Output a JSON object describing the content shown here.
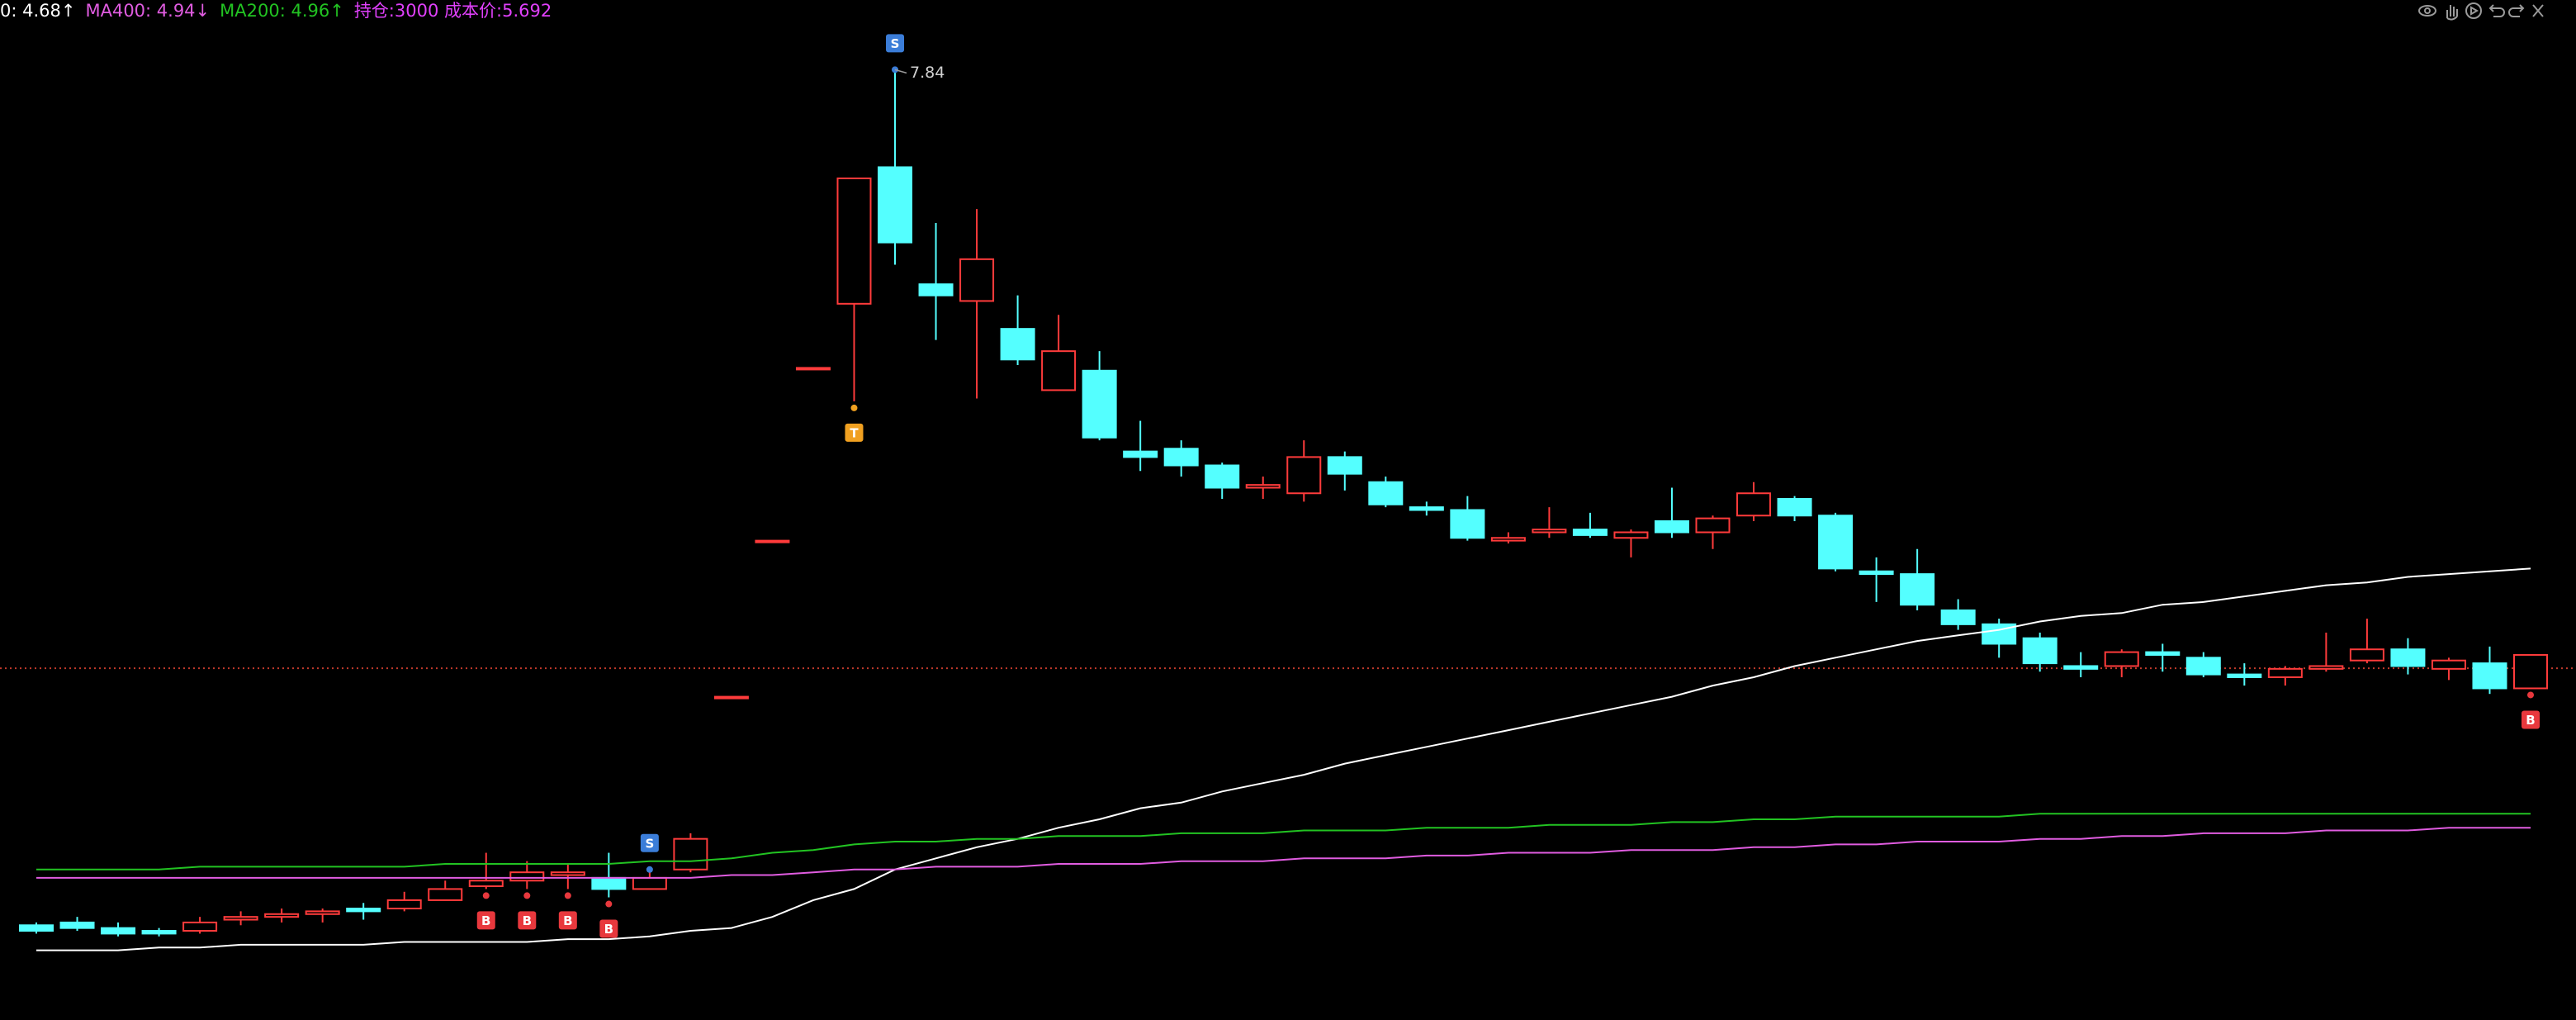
{
  "chart_data": {
    "type": "candlestick",
    "ylim": [
      4.43,
      8.09
    ],
    "open": [
      4.77,
      4.78,
      4.76,
      4.75,
      4.75,
      4.79,
      4.8,
      4.81,
      4.83,
      4.83,
      4.86,
      4.91,
      4.93,
      4.95,
      4.94,
      4.9,
      4.97,
      5.59,
      6.15,
      6.77,
      7.0,
      7.49,
      7.07,
      7.01,
      6.91,
      6.69,
      6.76,
      6.47,
      6.48,
      6.42,
      6.34,
      6.32,
      6.45,
      6.36,
      6.27,
      6.26,
      6.15,
      6.18,
      6.19,
      6.16,
      6.22,
      6.18,
      6.24,
      6.3,
      6.24,
      6.04,
      6.03,
      5.9,
      5.85,
      5.8,
      5.7,
      5.7,
      5.75,
      5.73,
      5.67,
      5.66,
      5.69,
      5.72,
      5.76,
      5.69,
      5.71,
      5.62
    ],
    "high": [
      4.78,
      4.8,
      4.78,
      4.76,
      4.8,
      4.82,
      4.83,
      4.83,
      4.85,
      4.89,
      4.93,
      5.03,
      5.0,
      4.99,
      5.03,
      4.97,
      5.1,
      5.59,
      6.15,
      6.77,
      7.45,
      7.84,
      7.29,
      7.34,
      7.03,
      6.96,
      6.83,
      6.58,
      6.51,
      6.43,
      6.38,
      6.51,
      6.47,
      6.38,
      6.29,
      6.31,
      6.18,
      6.27,
      6.25,
      6.19,
      6.34,
      6.24,
      6.36,
      6.31,
      6.25,
      6.09,
      6.12,
      5.94,
      5.87,
      5.82,
      5.75,
      5.76,
      5.78,
      5.75,
      5.71,
      5.7,
      5.82,
      5.87,
      5.8,
      5.73,
      5.77,
      5.74
    ],
    "low": [
      4.74,
      4.75,
      4.73,
      4.73,
      4.74,
      4.77,
      4.78,
      4.78,
      4.79,
      4.82,
      4.86,
      4.9,
      4.9,
      4.9,
      4.87,
      4.9,
      4.96,
      5.59,
      6.15,
      6.77,
      6.65,
      7.14,
      6.87,
      6.66,
      6.78,
      6.69,
      6.51,
      6.4,
      6.38,
      6.3,
      6.3,
      6.29,
      6.33,
      6.27,
      6.24,
      6.15,
      6.14,
      6.16,
      6.16,
      6.09,
      6.16,
      6.12,
      6.22,
      6.22,
      6.04,
      5.93,
      5.9,
      5.83,
      5.73,
      5.68,
      5.66,
      5.66,
      5.68,
      5.66,
      5.63,
      5.63,
      5.68,
      5.71,
      5.67,
      5.65,
      5.6,
      5.62
    ],
    "close": [
      4.75,
      4.76,
      4.74,
      4.74,
      4.78,
      4.8,
      4.81,
      4.82,
      4.82,
      4.86,
      4.9,
      4.93,
      4.96,
      4.96,
      4.9,
      4.94,
      5.08,
      5.59,
      6.15,
      6.77,
      7.45,
      7.22,
      7.03,
      7.16,
      6.8,
      6.83,
      6.52,
      6.45,
      6.42,
      6.34,
      6.35,
      6.45,
      6.39,
      6.28,
      6.26,
      6.16,
      6.16,
      6.19,
      6.17,
      6.18,
      6.18,
      6.23,
      6.32,
      6.24,
      6.05,
      6.03,
      5.92,
      5.85,
      5.78,
      5.71,
      5.69,
      5.75,
      5.74,
      5.67,
      5.66,
      5.69,
      5.7,
      5.76,
      5.7,
      5.72,
      5.62,
      5.74
    ],
    "up_color": "#ff3b3b",
    "down_color": "#54ffff",
    "series": [
      {
        "name": "0: 4.68↑",
        "color": "#ffffff",
        "values": [
          4.68,
          4.68,
          4.68,
          4.69,
          4.69,
          4.7,
          4.7,
          4.7,
          4.7,
          4.71,
          4.71,
          4.71,
          4.71,
          4.72,
          4.72,
          4.73,
          4.75,
          4.76,
          4.8,
          4.86,
          4.9,
          4.97,
          5.01,
          5.05,
          5.08,
          5.12,
          5.15,
          5.19,
          5.21,
          5.25,
          5.28,
          5.31,
          5.35,
          5.38,
          5.41,
          5.44,
          5.47,
          5.5,
          5.53,
          5.56,
          5.59,
          5.63,
          5.66,
          5.7,
          5.73,
          5.76,
          5.79,
          5.81,
          5.83,
          5.86,
          5.88,
          5.89,
          5.92,
          5.93,
          5.95,
          5.97,
          5.99,
          6.0,
          6.02,
          6.03,
          6.04,
          6.05
        ]
      },
      {
        "name": "MA400: 4.94↓",
        "color": "#e05ce0",
        "values": [
          4.94,
          4.94,
          4.94,
          4.94,
          4.94,
          4.94,
          4.94,
          4.94,
          4.94,
          4.94,
          4.94,
          4.94,
          4.94,
          4.94,
          4.94,
          4.94,
          4.94,
          4.95,
          4.95,
          4.96,
          4.97,
          4.97,
          4.98,
          4.98,
          4.98,
          4.99,
          4.99,
          4.99,
          5.0,
          5.0,
          5.0,
          5.01,
          5.01,
          5.01,
          5.02,
          5.02,
          5.03,
          5.03,
          5.03,
          5.04,
          5.04,
          5.04,
          5.05,
          5.05,
          5.06,
          5.06,
          5.07,
          5.07,
          5.07,
          5.08,
          5.08,
          5.09,
          5.09,
          5.1,
          5.1,
          5.1,
          5.11,
          5.11,
          5.11,
          5.12,
          5.12,
          5.12
        ]
      },
      {
        "name": "MA200: 4.96↑",
        "color": "#22c322",
        "values": [
          4.97,
          4.97,
          4.97,
          4.97,
          4.98,
          4.98,
          4.98,
          4.98,
          4.98,
          4.98,
          4.99,
          4.99,
          4.99,
          4.99,
          4.99,
          5.0,
          5.0,
          5.01,
          5.03,
          5.04,
          5.06,
          5.07,
          5.07,
          5.08,
          5.08,
          5.09,
          5.09,
          5.09,
          5.1,
          5.1,
          5.1,
          5.11,
          5.11,
          5.11,
          5.12,
          5.12,
          5.12,
          5.13,
          5.13,
          5.13,
          5.14,
          5.14,
          5.15,
          5.15,
          5.16,
          5.16,
          5.16,
          5.16,
          5.16,
          5.17,
          5.17,
          5.17,
          5.17,
          5.17,
          5.17,
          5.17,
          5.17,
          5.17,
          5.17,
          5.17,
          5.17,
          5.17
        ]
      }
    ],
    "position_info": "持仓:3000 成本价:5.692",
    "position_color": "#e040fb",
    "cost_price": 5.692,
    "cost_line_color": "#c0392b",
    "signals": [
      null,
      null,
      null,
      null,
      null,
      null,
      null,
      null,
      null,
      null,
      null,
      "B",
      "B",
      "B",
      "B",
      "S",
      null,
      null,
      null,
      null,
      "T",
      "S",
      null,
      null,
      null,
      null,
      null,
      null,
      null,
      null,
      null,
      null,
      null,
      null,
      null,
      null,
      null,
      null,
      null,
      null,
      null,
      null,
      null,
      null,
      null,
      null,
      null,
      null,
      null,
      null,
      null,
      null,
      null,
      null,
      null,
      null,
      null,
      null,
      null,
      null,
      null,
      "B"
    ],
    "signal_colors": {
      "S": "#3b7dd8",
      "T": "#f0a020",
      "B": "#e8383d"
    },
    "annotation": "7.84"
  }
}
